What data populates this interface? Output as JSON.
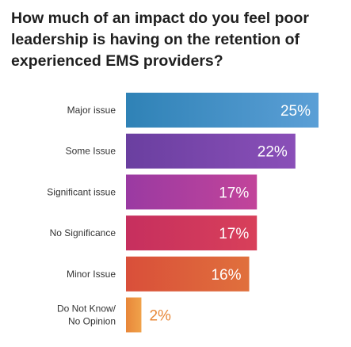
{
  "title": "How much of an impact do you feel poor leadership is having on the retention of experienced EMS providers?",
  "chart_data": {
    "type": "bar",
    "orientation": "horizontal",
    "title": "How much of an impact do you feel poor leadership is having on the retention of experienced EMS providers?",
    "categories": [
      [
        "Major issue"
      ],
      [
        "Some Issue"
      ],
      [
        "Significant issue"
      ],
      [
        "No Significance"
      ],
      [
        "Minor Issue"
      ],
      [
        "Do Not Know/",
        "No Opinion"
      ]
    ],
    "values": [
      25,
      22,
      17,
      17,
      16,
      2
    ],
    "value_labels": [
      "25%",
      "22%",
      "17%",
      "17%",
      "16%",
      "2%"
    ],
    "xlim": [
      0,
      25
    ],
    "grid": false,
    "colors": [
      [
        "#2f82b6",
        "#5b9fd6"
      ],
      [
        "#6a3fa0",
        "#8a4fb8"
      ],
      [
        "#9a3aa2",
        "#c2449a"
      ],
      [
        "#c62f5e",
        "#d8405a"
      ],
      [
        "#d94f3a",
        "#e0703c"
      ],
      [
        "#e8873a",
        "#f0a24a"
      ]
    ]
  }
}
